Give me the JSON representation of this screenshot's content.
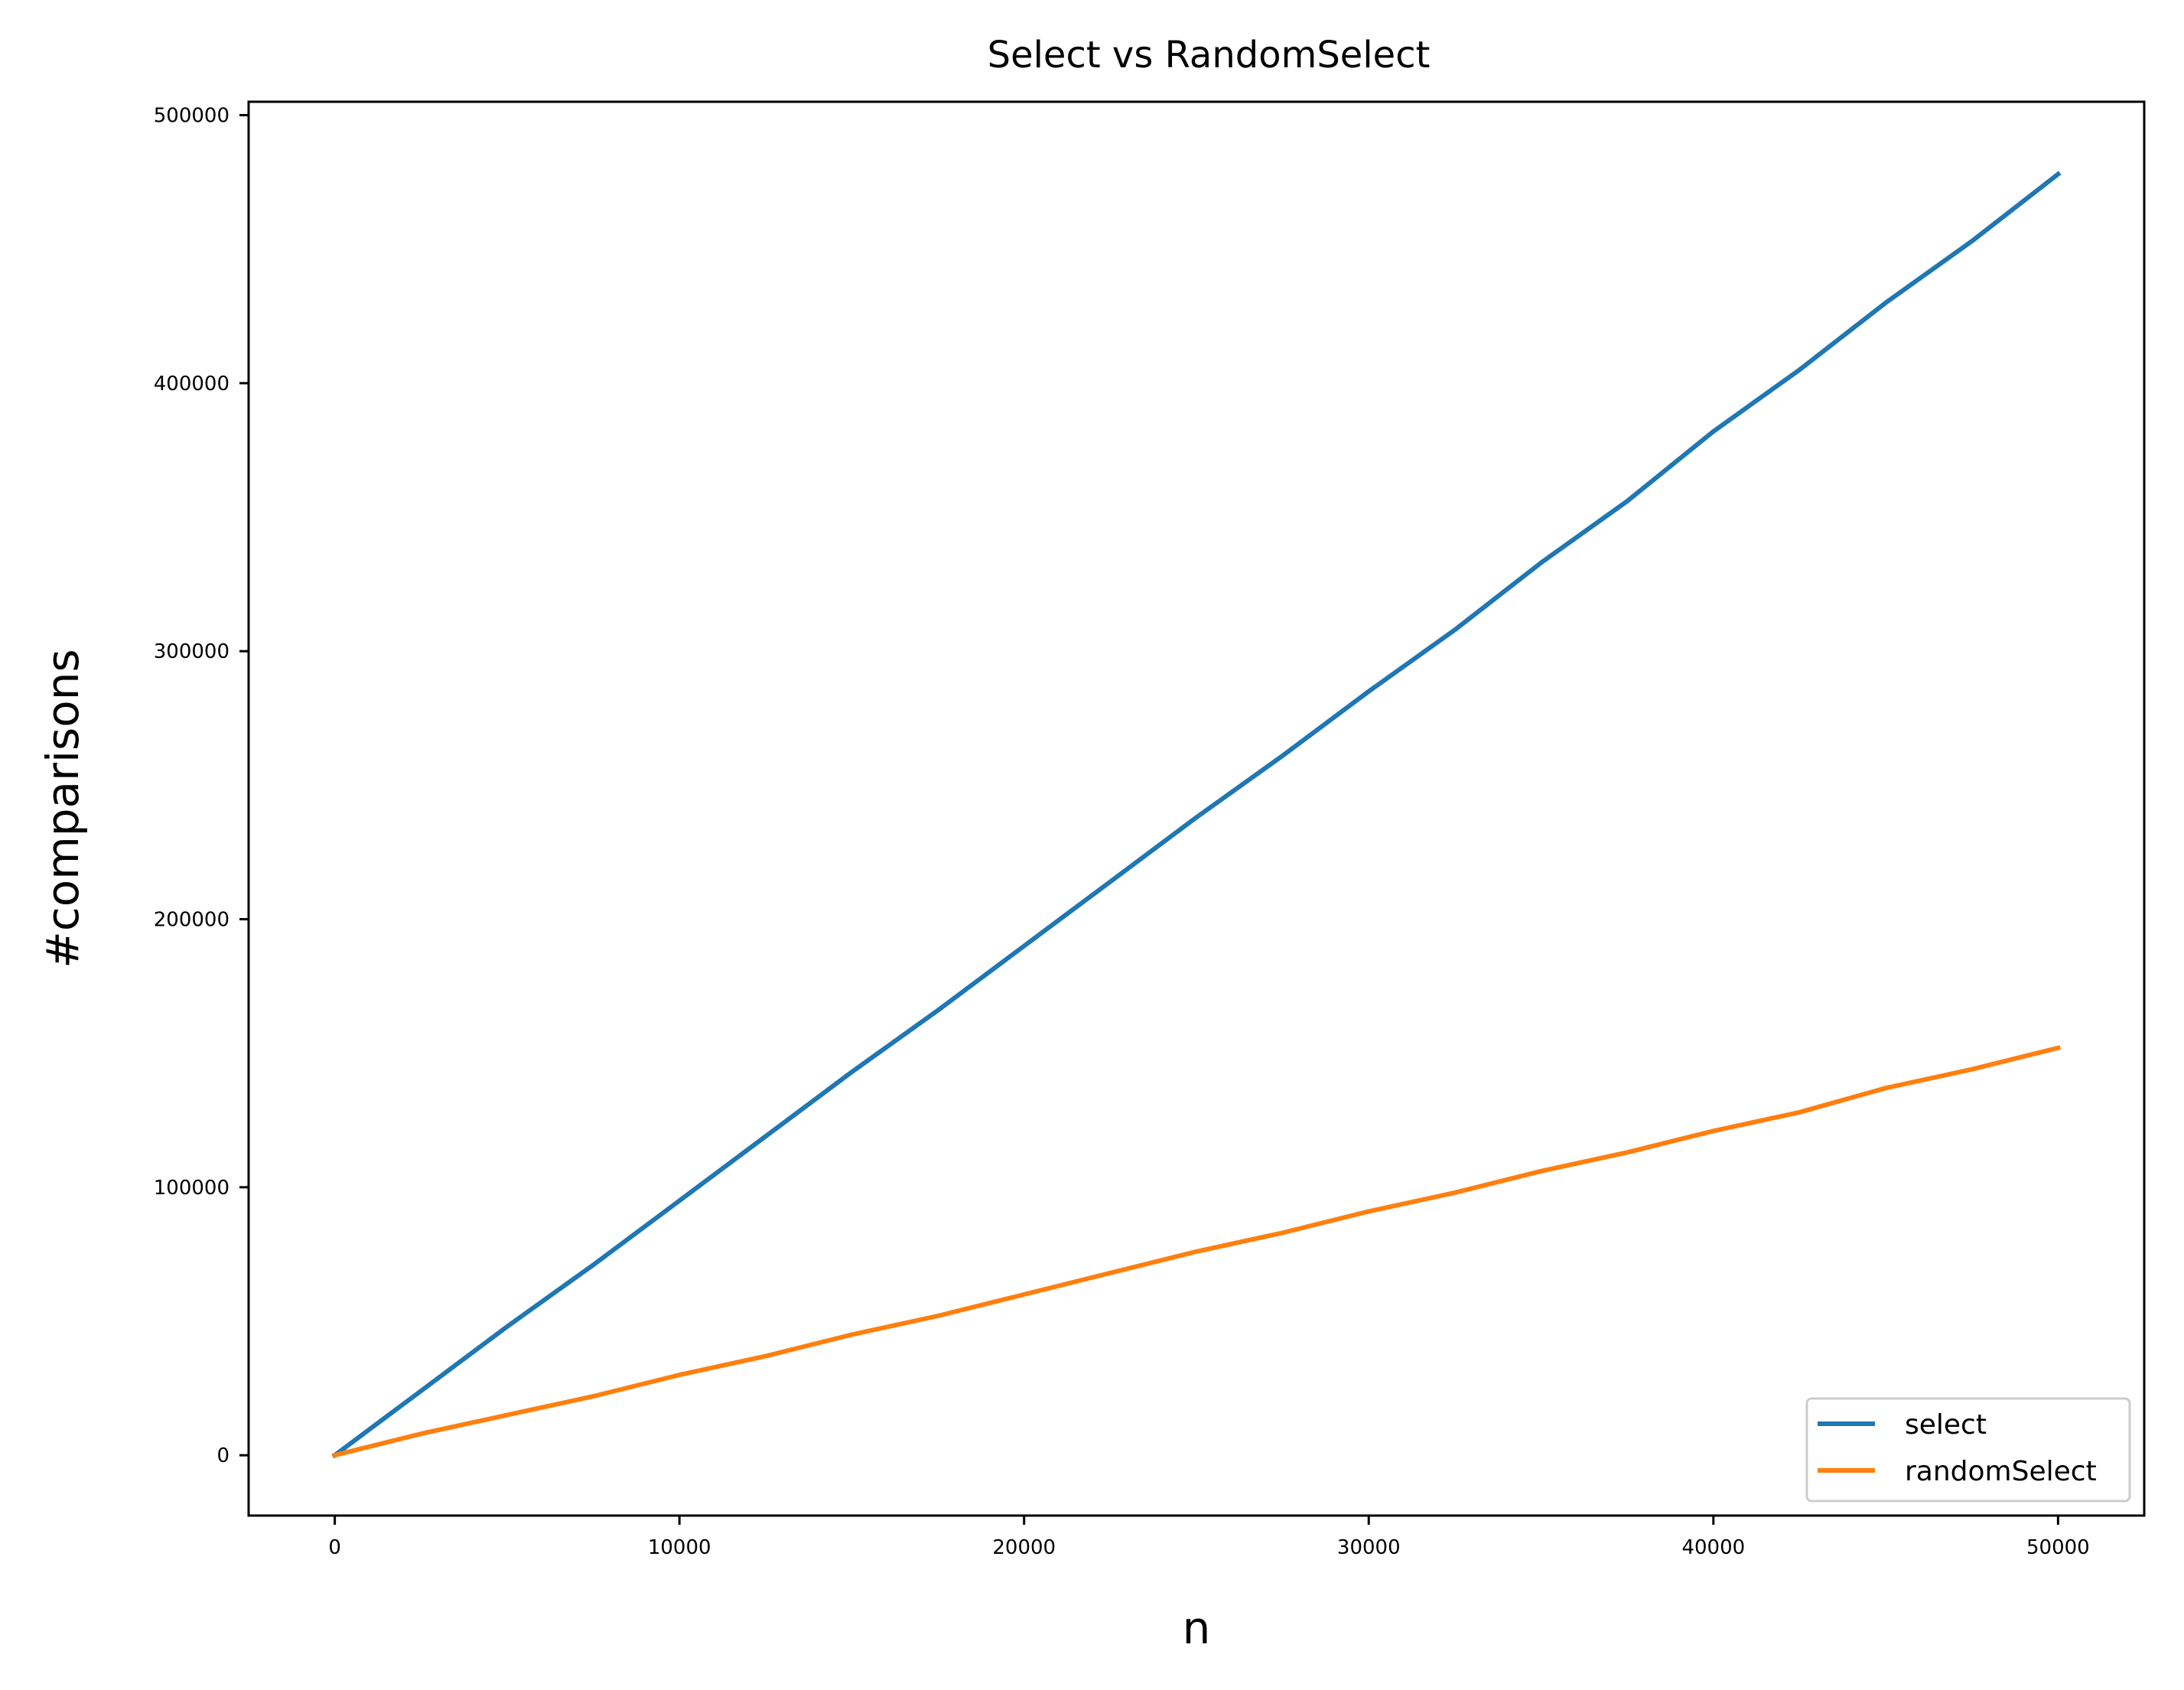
{
  "chart_data": {
    "type": "line",
    "title": "Select vs RandomSelect",
    "xlabel": "n",
    "ylabel": "#comparisons",
    "xlim": [
      -2500,
      52500
    ],
    "ylim": [
      -22500,
      505000
    ],
    "xticks": [
      0,
      10000,
      20000,
      30000,
      40000,
      50000
    ],
    "xtick_labels": [
      "0",
      "10000",
      "20000",
      "30000",
      "40000",
      "50000"
    ],
    "yticks": [
      0,
      100000,
      200000,
      300000,
      400000,
      500000
    ],
    "ytick_labels": [
      "0",
      "100000",
      "200000",
      "300000",
      "400000",
      "500000"
    ],
    "grid": false,
    "legend_position": "lower-right",
    "x": [
      0,
      2500,
      5000,
      7500,
      10000,
      12500,
      15000,
      17500,
      20000,
      22500,
      25000,
      27500,
      30000,
      32500,
      35000,
      37500,
      40000,
      42500,
      45000,
      47500,
      50000
    ],
    "series": [
      {
        "name": "select",
        "color": "#1f77b4",
        "values": [
          0,
          24000,
          48000,
          71000,
          95000,
          119000,
          143000,
          166000,
          190000,
          214000,
          238000,
          261000,
          285000,
          308000,
          333000,
          356000,
          382000,
          405000,
          430000,
          453000,
          478000
        ]
      },
      {
        "name": "randomSelect",
        "color": "#ff7f0e",
        "values": [
          0,
          8000,
          15000,
          22000,
          30000,
          37000,
          45000,
          52000,
          60000,
          68000,
          76000,
          83000,
          91000,
          98000,
          106000,
          113000,
          121000,
          128000,
          137000,
          144000,
          152000
        ]
      }
    ]
  }
}
